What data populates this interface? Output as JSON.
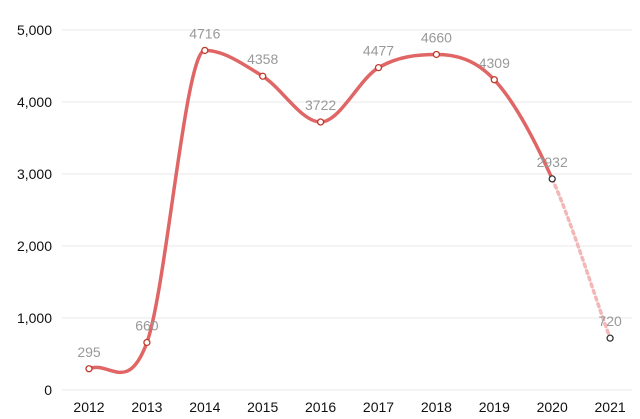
{
  "chart_data": {
    "type": "line",
    "categories": [
      "2012",
      "2013",
      "2014",
      "2015",
      "2016",
      "2017",
      "2018",
      "2019",
      "2020",
      "2021"
    ],
    "values": [
      295,
      660,
      4716,
      4358,
      3722,
      4477,
      4660,
      4309,
      2932,
      720
    ],
    "data_labels": [
      "295",
      "660",
      "4716",
      "4358",
      "3722",
      "4477",
      "4660",
      "4309",
      "2932",
      "720"
    ],
    "y_ticks": [
      {
        "value": 0,
        "label": "0"
      },
      {
        "value": 1000,
        "label": "1,000"
      },
      {
        "value": 2000,
        "label": "2,000"
      },
      {
        "value": 3000,
        "label": "3,000"
      },
      {
        "value": 4000,
        "label": "4,000"
      },
      {
        "value": 5000,
        "label": "5,000"
      }
    ],
    "ylim": [
      0,
      5000
    ],
    "grid": true,
    "title": "",
    "xlabel": "",
    "ylabel": "",
    "dashed_from_index": 8,
    "colors": {
      "line": "#e06666",
      "projected": "#f2b8b8",
      "grid": "#e8e8e8",
      "marker_fill": "#ffffff",
      "marker_stroke_solid": "#c0392b",
      "marker_stroke_projected": "#333333",
      "label": "#999999"
    }
  }
}
